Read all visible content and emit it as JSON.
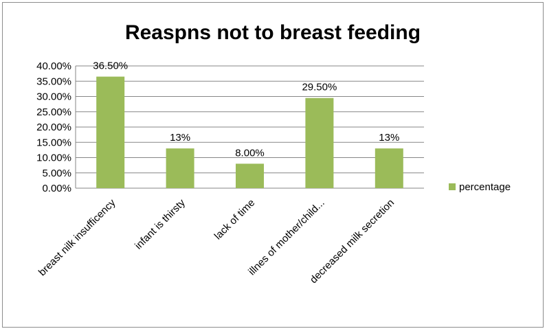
{
  "chart_data": {
    "type": "bar",
    "title": "Reaspns not to breast feeding",
    "categories": [
      "breast nilk insufficency",
      "infant is thirsty",
      "lack of time",
      "illnes of mother/child...",
      "decreased milk secretion"
    ],
    "series": [
      {
        "name": "percentage",
        "values": [
          36.5,
          13,
          8,
          29.5,
          13
        ],
        "data_labels": [
          "36.50%",
          "13%",
          "8.00%",
          "29.50%",
          "13%"
        ],
        "color": "#9bbb59"
      }
    ],
    "ylim": [
      0,
      40
    ],
    "yticks": [
      0,
      5,
      10,
      15,
      20,
      25,
      30,
      35,
      40
    ],
    "ytick_labels": [
      "0.00%",
      "5.00%",
      "10.00%",
      "15.00%",
      "20.00%",
      "25.00%",
      "30.00%",
      "35.00%",
      "40.00%"
    ],
    "grid": true,
    "legend_position": "right"
  }
}
